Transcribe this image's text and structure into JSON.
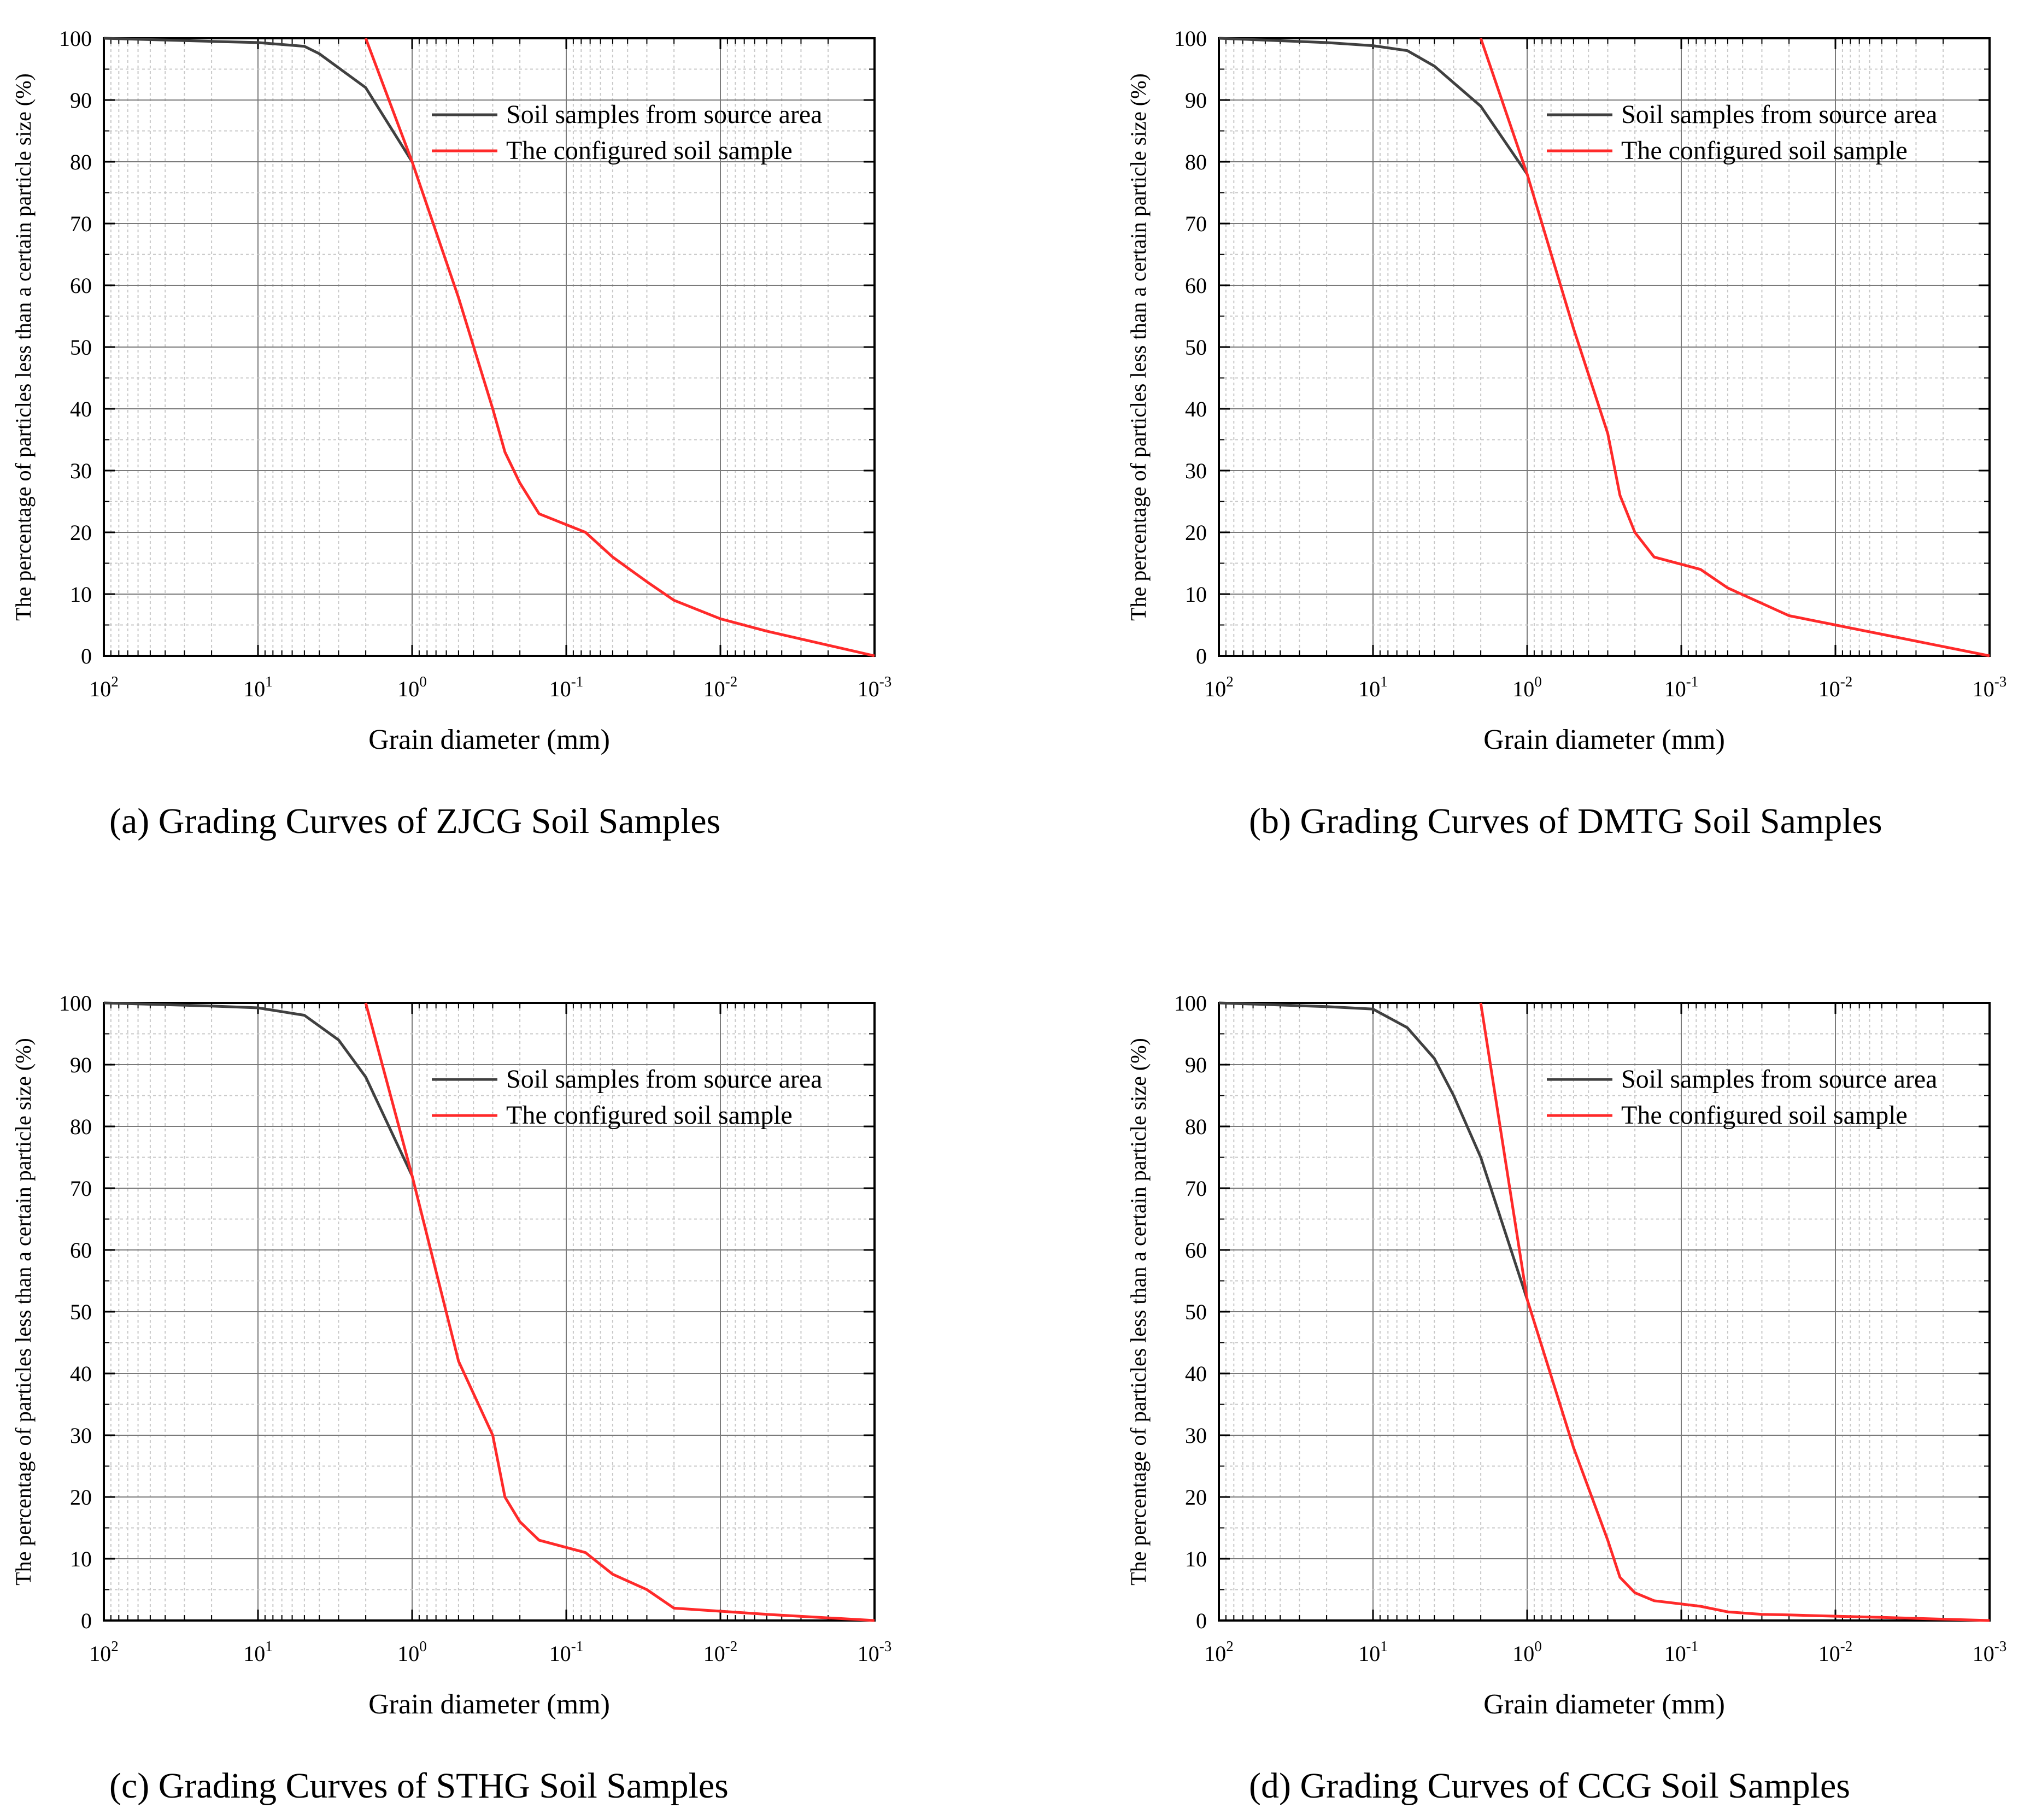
{
  "colors": {
    "source": "#404040",
    "configured": "#ff2a2a",
    "grid_major": "#7a7a7a",
    "grid_minor": "#c8c8c8"
  },
  "chart_data": [
    {
      "id": "a",
      "type": "line",
      "caption": "(a) Grading Curves of ZJCG Soil Samples",
      "xlabel": "Grain diameter (mm)",
      "ylabel": "The percentage of particles less than a certain particle size (%)",
      "xscale": "log",
      "xdir": "reversed",
      "xlim": [
        100,
        0.001
      ],
      "ylim": [
        0,
        100
      ],
      "yticks": [
        "0",
        "10",
        "20",
        "30",
        "40",
        "50",
        "60",
        "70",
        "80",
        "90",
        "100"
      ],
      "xticks": [
        {
          "base": "10",
          "exp": "2"
        },
        {
          "base": "10",
          "exp": "1"
        },
        {
          "base": "10",
          "exp": "0"
        },
        {
          "base": "10",
          "exp": "-1"
        },
        {
          "base": "10",
          "exp": "-2"
        },
        {
          "base": "10",
          "exp": "-3"
        }
      ],
      "grid": true,
      "legend": {
        "placement": "top-right",
        "entries": [
          "Soil samples from source area",
          "The configured soil sample"
        ]
      },
      "series": [
        {
          "name": "Soil samples from source area",
          "x": [
            100,
            20,
            10,
            5,
            4,
            2,
            1
          ],
          "y": [
            100,
            99.5,
            99.3,
            98.7,
            97.5,
            92,
            80
          ]
        },
        {
          "name": "The configured soil sample",
          "x": [
            2,
            1,
            0.5,
            0.3,
            0.25,
            0.2,
            0.15,
            0.075,
            0.05,
            0.03,
            0.02,
            0.01,
            0.005,
            0.001
          ],
          "y": [
            100,
            80,
            58,
            40,
            33,
            28,
            23,
            20,
            16,
            12,
            9,
            6,
            4,
            0
          ]
        }
      ]
    },
    {
      "id": "b",
      "type": "line",
      "caption": "(b) Grading Curves of DMTG Soil Samples",
      "xlabel": "Grain diameter (mm)",
      "ylabel": "The percentage of particles less than a certain particle size (%)",
      "xscale": "log",
      "xdir": "reversed",
      "xlim": [
        100,
        0.001
      ],
      "ylim": [
        0,
        100
      ],
      "yticks": [
        "0",
        "10",
        "20",
        "30",
        "40",
        "50",
        "60",
        "70",
        "80",
        "90",
        "100"
      ],
      "xticks": [
        {
          "base": "10",
          "exp": "2"
        },
        {
          "base": "10",
          "exp": "1"
        },
        {
          "base": "10",
          "exp": "0"
        },
        {
          "base": "10",
          "exp": "-1"
        },
        {
          "base": "10",
          "exp": "-2"
        },
        {
          "base": "10",
          "exp": "-3"
        }
      ],
      "grid": true,
      "legend": {
        "placement": "top-right",
        "entries": [
          "Soil samples from source area",
          "The configured soil sample"
        ]
      },
      "series": [
        {
          "name": "Soil samples from source area",
          "x": [
            100,
            20,
            10,
            6,
            4,
            2,
            1
          ],
          "y": [
            100,
            99.3,
            98.8,
            98,
            95.5,
            89,
            78
          ]
        },
        {
          "name": "The configured soil sample",
          "x": [
            2,
            1,
            0.5,
            0.3,
            0.25,
            0.2,
            0.15,
            0.075,
            0.05,
            0.03,
            0.02,
            0.01,
            0.005,
            0.001
          ],
          "y": [
            100,
            78,
            53,
            36,
            26,
            20,
            16,
            14,
            11,
            8.5,
            6.5,
            5,
            3.5,
            0
          ]
        }
      ]
    },
    {
      "id": "c",
      "type": "line",
      "caption": "(c) Grading Curves of STHG Soil Samples",
      "xlabel": "Grain diameter (mm)",
      "ylabel": "The percentage of particles less than a certain particle size (%)",
      "xscale": "log",
      "xdir": "reversed",
      "xlim": [
        100,
        0.001
      ],
      "ylim": [
        0,
        100
      ],
      "yticks": [
        "0",
        "10",
        "20",
        "30",
        "40",
        "50",
        "60",
        "70",
        "80",
        "90",
        "100"
      ],
      "xticks": [
        {
          "base": "10",
          "exp": "2"
        },
        {
          "base": "10",
          "exp": "1"
        },
        {
          "base": "10",
          "exp": "0"
        },
        {
          "base": "10",
          "exp": "-1"
        },
        {
          "base": "10",
          "exp": "-2"
        },
        {
          "base": "10",
          "exp": "-3"
        }
      ],
      "grid": true,
      "legend": {
        "placement": "top-right",
        "entries": [
          "Soil samples from source area",
          "The configured soil sample"
        ]
      },
      "series": [
        {
          "name": "Soil samples from source area",
          "x": [
            100,
            20,
            10,
            5,
            3,
            2,
            1
          ],
          "y": [
            100,
            99.5,
            99.2,
            98,
            94,
            88,
            72
          ]
        },
        {
          "name": "The configured soil sample",
          "x": [
            2,
            1,
            0.5,
            0.3,
            0.25,
            0.2,
            0.15,
            0.075,
            0.05,
            0.03,
            0.02,
            0.01,
            0.005,
            0.001
          ],
          "y": [
            100,
            72,
            42,
            30,
            20,
            16,
            13,
            11,
            7.5,
            5,
            2,
            1.5,
            1,
            0
          ]
        }
      ]
    },
    {
      "id": "d",
      "type": "line",
      "caption": "(d) Grading Curves of CCG Soil Samples",
      "xlabel": "Grain diameter (mm)",
      "ylabel": "The percentage of particles less than a certain particle size (%)",
      "xscale": "log",
      "xdir": "reversed",
      "xlim": [
        100,
        0.001
      ],
      "ylim": [
        0,
        100
      ],
      "yticks": [
        "0",
        "10",
        "20",
        "30",
        "40",
        "50",
        "60",
        "70",
        "80",
        "90",
        "100"
      ],
      "xticks": [
        {
          "base": "10",
          "exp": "2"
        },
        {
          "base": "10",
          "exp": "1"
        },
        {
          "base": "10",
          "exp": "0"
        },
        {
          "base": "10",
          "exp": "-1"
        },
        {
          "base": "10",
          "exp": "-2"
        },
        {
          "base": "10",
          "exp": "-3"
        }
      ],
      "grid": true,
      "legend": {
        "placement": "top-right",
        "entries": [
          "Soil samples from source area",
          "The configured soil sample"
        ]
      },
      "series": [
        {
          "name": "Soil samples from source area",
          "x": [
            100,
            20,
            10,
            6,
            4,
            3,
            2,
            1
          ],
          "y": [
            100,
            99.4,
            99,
            96,
            91,
            85,
            75,
            52
          ]
        },
        {
          "name": "The configured soil sample",
          "x": [
            2,
            1,
            0.5,
            0.3,
            0.25,
            0.2,
            0.15,
            0.075,
            0.05,
            0.03,
            0.02,
            0.01,
            0.005,
            0.001
          ],
          "y": [
            100,
            52,
            28,
            13,
            7,
            4.5,
            3.2,
            2.3,
            1.4,
            1,
            0.9,
            0.7,
            0.5,
            0
          ]
        }
      ]
    }
  ]
}
